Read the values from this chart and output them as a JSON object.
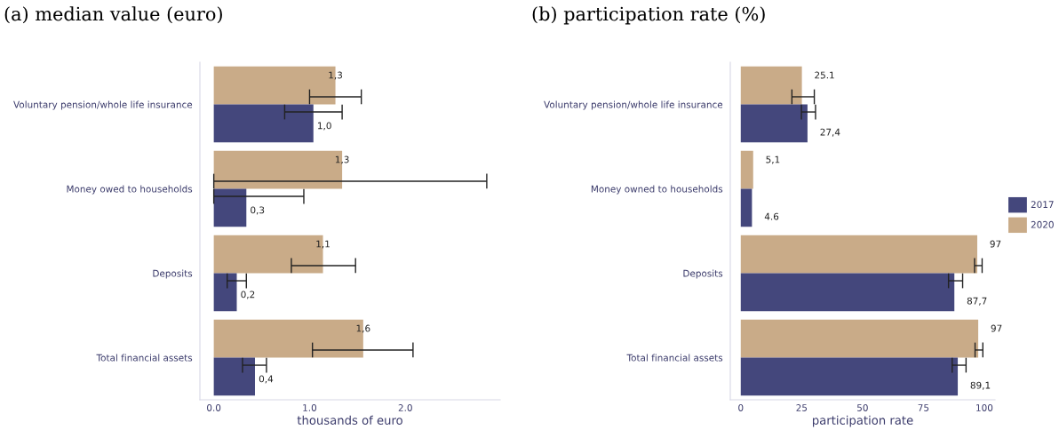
{
  "chart_data": [
    {
      "type": "bar",
      "orientation": "horizontal",
      "title": "(a) median value (euro)",
      "xlabel": "thousands of euro",
      "categories": [
        "Voluntary pension/whole life insurance",
        "Money owed to households",
        "Deposits",
        "Total financial assets"
      ],
      "series": [
        {
          "name": "2020",
          "color": "#c9ab88",
          "values": [
            1.27,
            1.34,
            1.14,
            1.56
          ],
          "value_labels": [
            "1,3",
            "1,3",
            "1,1",
            "1,6"
          ],
          "errors": [
            [
              1.0,
              1.54
            ],
            [
              0.0,
              2.85
            ],
            [
              0.81,
              1.48
            ],
            [
              1.03,
              2.08
            ]
          ]
        },
        {
          "name": "2017",
          "color": "#44477c",
          "values": [
            1.04,
            0.34,
            0.24,
            0.43
          ],
          "value_labels": [
            "1,0",
            "0,3",
            "0,2",
            "0,4"
          ],
          "errors": [
            [
              0.74,
              1.34
            ],
            [
              0.0,
              0.94
            ],
            [
              0.14,
              0.34
            ],
            [
              0.3,
              0.55
            ]
          ]
        }
      ],
      "xlim": [
        -0.145,
        2.99
      ],
      "xticks": [
        {
          "value": 0,
          "label": "0.0"
        },
        {
          "value": 1,
          "label": "1.0"
        },
        {
          "value": 2,
          "label": "2.0"
        }
      ],
      "grid": false,
      "legend": "right"
    },
    {
      "type": "bar",
      "orientation": "horizontal",
      "title": "(b) participation rate (%)",
      "xlabel": "participation rate",
      "categories": [
        "Voluntary pension/whole life insurance",
        "Money owned to households",
        "Deposits",
        "Total financial assets"
      ],
      "series": [
        {
          "name": "2020",
          "color": "#c9ab88",
          "values": [
            25.1,
            5.1,
            97.1,
            97.5
          ],
          "value_labels": [
            "25.1",
            "5,1",
            "97",
            "97"
          ],
          "errors": [
            [
              21.0,
              30.2
            ],
            null,
            [
              96.0,
              99.1
            ],
            [
              96.2,
              99.4
            ]
          ]
        },
        {
          "name": "2017",
          "color": "#44477c",
          "values": [
            27.4,
            4.6,
            87.7,
            89.1
          ],
          "value_labels": [
            "27,4",
            "4.6",
            "87,7",
            "89,1"
          ],
          "errors": [
            [
              24.9,
              30.7
            ],
            null,
            [
              85.3,
              91.1
            ],
            [
              86.8,
              92.5
            ]
          ]
        }
      ],
      "xlim": [
        -4.3,
        104.4
      ],
      "xticks": [
        0,
        25,
        50,
        75,
        100
      ],
      "grid": false
    }
  ]
}
